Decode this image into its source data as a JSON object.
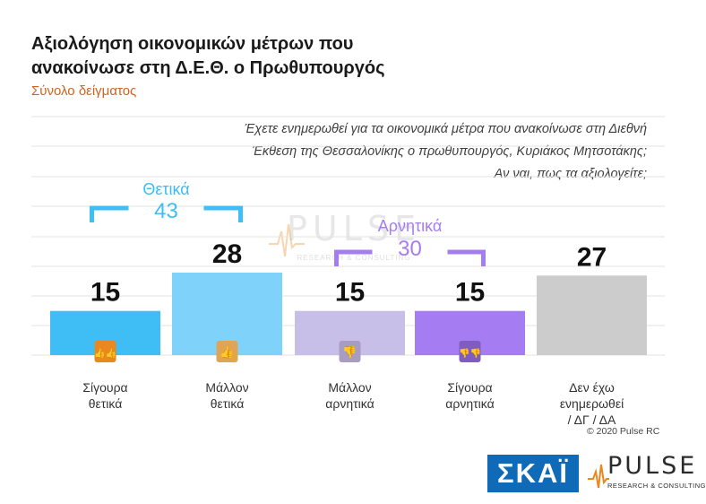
{
  "title_lines": [
    "Αξιολόγηση οικονομικών μέτρων που",
    "ανακοίνωσε στη Δ.Ε.Θ. ο Πρωθυπουργός"
  ],
  "subtitle": "Σύνολο δείγματος",
  "question_lines": [
    "Έχετε ενημερωθεί για τα οικονομικά μέτρα που ανακοίνωσε στη Διεθνή",
    "Έκθεση της Θεσσαλονίκης ο πρωθυπουργός, Κυριάκος Μητσοτάκης;",
    "Αν ναι, πως τα αξιολογείτε;"
  ],
  "chart_data": {
    "type": "bar",
    "categories": [
      [
        "Σίγουρα",
        "θετικά"
      ],
      [
        "Μάλλον",
        "θετικά"
      ],
      [
        "Μάλλον",
        "αρνητικά"
      ],
      [
        "Σίγουρα",
        "αρνητικά"
      ],
      [
        "Δεν έχω",
        "ενημερωθεί",
        "/ ΔΓ / ΔΑ"
      ]
    ],
    "values": [
      15,
      28,
      15,
      15,
      27
    ],
    "colors": [
      "#3fbdf5",
      "#7fd3fa",
      "#c8bfe9",
      "#a57cf2",
      "#cccccc"
    ],
    "icons": [
      "double-thumbs-up-icon",
      "thumbs-up-icon",
      "thumbs-down-icon",
      "double-thumbs-down-icon",
      ""
    ],
    "icon_colors": [
      "#e8881e",
      "#e0a455",
      "#a89cc2",
      "#7e5cc2",
      ""
    ],
    "ylim": [
      0,
      34
    ],
    "grid": true,
    "groups": [
      {
        "label": "Θετικά",
        "total": "43",
        "color": "#3fbdf5",
        "from": 0,
        "to": 1
      },
      {
        "label": "Αρνητικά",
        "total": "30",
        "color": "#a57cf2",
        "from": 2,
        "to": 3
      }
    ]
  },
  "watermark": {
    "word": "PULSE",
    "tag": "RESEARCH & CONSULTING"
  },
  "copyright": "© 2020 Pulse RC",
  "logos": {
    "skai": "ΣΚΑΪ",
    "pulse": "PULSE",
    "pulse_tag": "RESEARCH & CONSULTING"
  }
}
